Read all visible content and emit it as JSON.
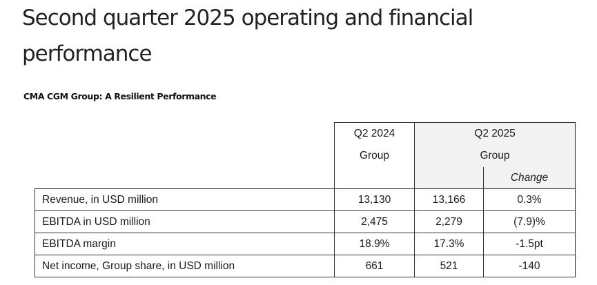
{
  "page": {
    "title": "Second quarter 2025 operating and financial performance",
    "subtitle": "CMA CGM Group: A Resilient Performance"
  },
  "table": {
    "header": {
      "q2_2024": "Q2 2024",
      "q2_2024_sub": "Group",
      "q2_2025": "Q2 2025",
      "q2_2025_sub": "Group",
      "change": "Change"
    },
    "rows": [
      {
        "label": "Revenue, in USD million",
        "q2_2024": "13,130",
        "q2_2025": "13,166",
        "change": "0.3%"
      },
      {
        "label": "EBITDA in USD million",
        "q2_2024": "2,475",
        "q2_2025": "2,279",
        "change": "(7.9)%"
      },
      {
        "label": "EBITDA margin",
        "q2_2024": "18.9%",
        "q2_2025": "17.3%",
        "change": "-1.5pt"
      },
      {
        "label": "Net income, Group share, in USD million",
        "q2_2024": "661",
        "q2_2025": "521",
        "change": "-140"
      }
    ]
  }
}
